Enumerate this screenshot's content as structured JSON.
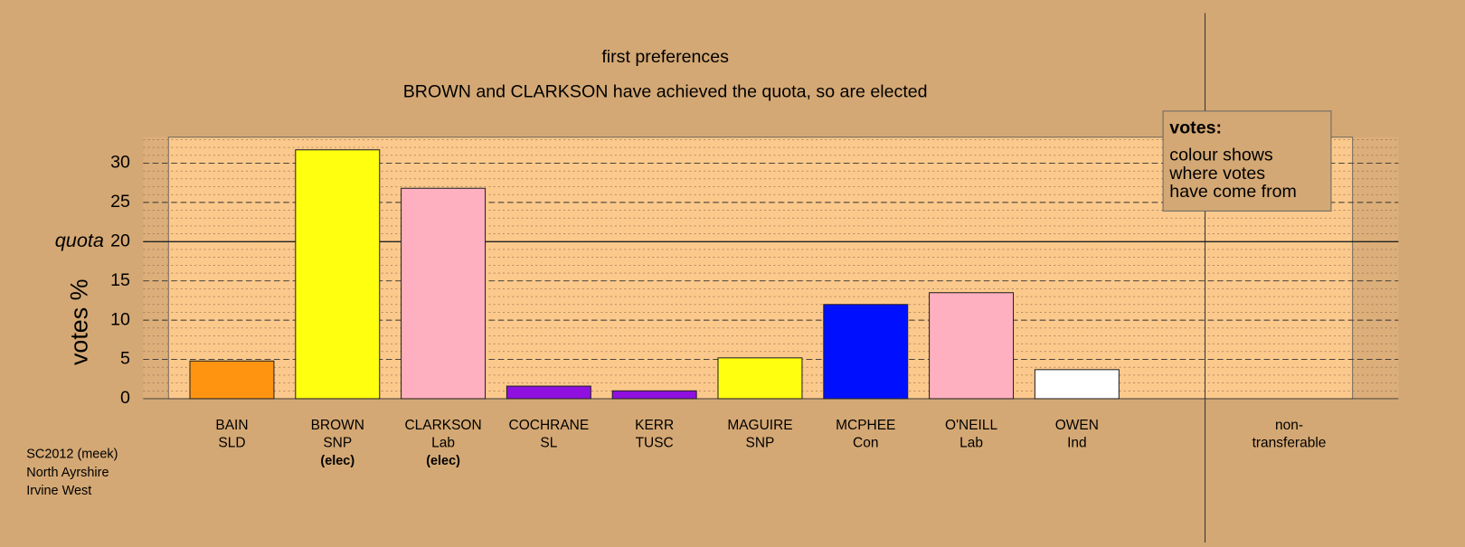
{
  "chart_data": {
    "type": "bar",
    "title": "first preferences",
    "subtitle": "BROWN and CLARKSON have achieved the quota, so are elected",
    "y_label": "votes %",
    "categories": [
      "BAIN",
      "BROWN",
      "CLARKSON",
      "COCHRANE",
      "KERR",
      "MAGUIRE",
      "MCPHEE",
      "O'NEILL",
      "OWEN"
    ],
    "parties": [
      "SLD",
      "SNP",
      "Lab",
      "SL",
      "TUSC",
      "SNP",
      "Con",
      "Lab",
      "Ind"
    ],
    "status": [
      null,
      "(elec)",
      "(elec)",
      null,
      null,
      null,
      null,
      null,
      null
    ],
    "values": [
      4.8,
      31.7,
      26.8,
      1.6,
      1.0,
      5.2,
      12.0,
      13.5,
      3.7
    ],
    "colors": [
      "#ff9410",
      "#ffff10",
      "#ffb0c0",
      "#9010e0",
      "#9010e0",
      "#ffff10",
      "#0010ff",
      "#ffb0c0",
      "#ffffff"
    ],
    "nontransferable_label": [
      "non-",
      "transferable"
    ],
    "ylim": [
      0,
      33.3
    ],
    "yticks": [
      0,
      5,
      10,
      15,
      20,
      25,
      30
    ],
    "yminor": 1,
    "grid": true,
    "quota": 20,
    "quota_label": "quota",
    "legend": {
      "title": "votes:",
      "lines": [
        "colour shows",
        "where votes",
        "have come from"
      ]
    },
    "notes": [
      "SC2012 (meek)",
      "North Ayrshire",
      "Irvine West"
    ]
  }
}
